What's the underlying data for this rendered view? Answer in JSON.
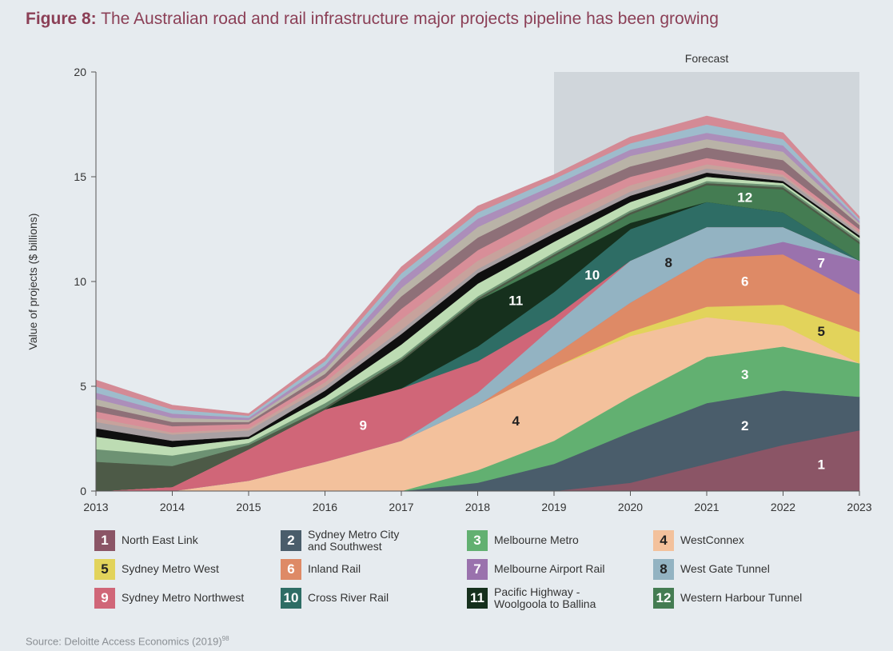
{
  "title": {
    "label": "Figure 8:",
    "text": " The Australian road and rail infrastructure major projects pipeline has been growing"
  },
  "source": {
    "text": "Source: Deloitte Access Economics (2019)",
    "sup": "98"
  },
  "chart_data": {
    "type": "area",
    "stacked": true,
    "ylabel": "Value of projects ($ billions)",
    "xlabel": "",
    "ylim": [
      0,
      20
    ],
    "yticks": [
      0,
      5,
      10,
      15,
      20
    ],
    "x": [
      "2013",
      "2014",
      "2015",
      "2016",
      "2017",
      "2018",
      "2019",
      "2020",
      "2021",
      "2022",
      "2023"
    ],
    "forecast": {
      "label": "Forecast",
      "from": "2019",
      "to": "2023"
    },
    "grid": false,
    "legend_position": "bottom",
    "series": [
      {
        "id": "1",
        "name": "North East Link",
        "color": "#8b5566",
        "values": [
          0,
          0,
          0,
          0,
          0,
          0,
          0,
          0.4,
          1.3,
          2.2,
          2.9
        ]
      },
      {
        "id": "2",
        "name": "Sydney Metro City\nand Southwest",
        "color": "#4a5d6b",
        "values": [
          0,
          0,
          0,
          0,
          0,
          0.4,
          1.3,
          2.4,
          2.9,
          2.6,
          1.6
        ]
      },
      {
        "id": "3",
        "name": "Melbourne Metro",
        "color": "#62b071",
        "values": [
          0,
          0,
          0,
          0,
          0,
          0.6,
          1.1,
          1.7,
          2.2,
          2.1,
          1.6
        ]
      },
      {
        "id": "4",
        "name": "WestConnex",
        "color": "#f3c19c",
        "values": [
          0,
          0,
          0.5,
          1.4,
          2.4,
          3.1,
          3.5,
          2.9,
          1.9,
          1.0,
          0
        ]
      },
      {
        "id": "5",
        "name": "Sydney Metro West",
        "color": "#e2d35b",
        "values": [
          0,
          0,
          0,
          0,
          0,
          0,
          0,
          0.2,
          0.5,
          1.0,
          1.5
        ]
      },
      {
        "id": "6",
        "name": "Inland Rail",
        "color": "#de8a66",
        "values": [
          0,
          0,
          0,
          0,
          0,
          0,
          0.6,
          1.4,
          2.3,
          2.4,
          1.8
        ]
      },
      {
        "id": "7",
        "name": "Melbourne Airport Rail",
        "color": "#9a72ad",
        "values": [
          0,
          0,
          0,
          0,
          0,
          0,
          0,
          0,
          0,
          0.6,
          1.6
        ]
      },
      {
        "id": "8",
        "name": "West Gate Tunnel",
        "color": "#93b3c2",
        "values": [
          0,
          0,
          0,
          0,
          0,
          0.6,
          1.4,
          2.0,
          1.5,
          0.7,
          0
        ]
      },
      {
        "id": "9",
        "name": "Sydney Metro Northwest",
        "color": "#d06678",
        "values": [
          0,
          0.2,
          1.5,
          2.5,
          2.5,
          1.5,
          0.4,
          0,
          0,
          0,
          0
        ]
      },
      {
        "id": "10",
        "name": "Cross River Rail",
        "color": "#2e6d65",
        "values": [
          0,
          0,
          0,
          0,
          0,
          0.7,
          1.2,
          1.5,
          1.2,
          0.7,
          0
        ]
      },
      {
        "id": "11",
        "name": "Pacific Highway -\nWoolgoola to Ballina",
        "color": "#16301d",
        "values": [
          0,
          0,
          0,
          0,
          1.3,
          2.2,
          1.4,
          0.3,
          0,
          0,
          0
        ]
      },
      {
        "id": "12",
        "name": "Western Harbour Tunnel",
        "color": "#447c52",
        "values": [
          0,
          0,
          0,
          0,
          0,
          0,
          0.3,
          0.4,
          0.8,
          1.1,
          0.8
        ]
      }
    ],
    "unlabeled_series_values": [
      [
        1.4,
        1.0,
        0.2,
        0.1,
        0.1,
        0.1,
        0.1,
        0.1,
        0.1,
        0.1,
        0.1
      ],
      [
        0.6,
        0.5,
        0.1,
        0.2,
        0.1,
        0.1,
        0.1,
        0.1,
        0.1,
        0.1,
        0.1
      ],
      [
        0.6,
        0.4,
        0.2,
        0.3,
        0.6,
        0.6,
        0.5,
        0.4,
        0.2,
        0.1,
        0.1
      ],
      [
        0.4,
        0.3,
        0.1,
        0.3,
        0.5,
        0.5,
        0.4,
        0.3,
        0.2,
        0.1,
        0.1
      ],
      [
        0.3,
        0.3,
        0.3,
        0.2,
        0.2,
        0.2,
        0.2,
        0.2,
        0.2,
        0.2,
        0.1
      ],
      [
        0.2,
        0.1,
        0.1,
        0.2,
        0.5,
        0.4,
        0.4,
        0.3,
        0.2,
        0.1,
        0.1
      ],
      [
        0.3,
        0.3,
        0.2,
        0.2,
        0.5,
        0.5,
        0.5,
        0.4,
        0.3,
        0.2,
        0.1
      ],
      [
        0.3,
        0.2,
        0.1,
        0.2,
        0.6,
        0.6,
        0.5,
        0.5,
        0.5,
        0.5,
        0.2
      ],
      [
        0.3,
        0.2,
        0.1,
        0.2,
        0.4,
        0.5,
        0.4,
        0.5,
        0.4,
        0.4,
        0.1
      ],
      [
        0.3,
        0.2,
        0.1,
        0.2,
        0.4,
        0.4,
        0.3,
        0.3,
        0.3,
        0.3,
        0.1
      ],
      [
        0.3,
        0.2,
        0.1,
        0.2,
        0.3,
        0.3,
        0.3,
        0.3,
        0.4,
        0.3,
        0.1
      ],
      [
        0.3,
        0.2,
        0.1,
        0.2,
        0.3,
        0.3,
        0.2,
        0.3,
        0.4,
        0.3,
        0.1
      ]
    ],
    "unlabeled_series_colors": [
      "#4d5a47",
      "#6d9273",
      "#bddcb3",
      "#0f0f0f",
      "#a9a0a3",
      "#c7a29c",
      "#d88e98",
      "#8e7078",
      "#b9b3a7",
      "#ac8eba",
      "#9ebccc",
      "#d48a95"
    ]
  }
}
